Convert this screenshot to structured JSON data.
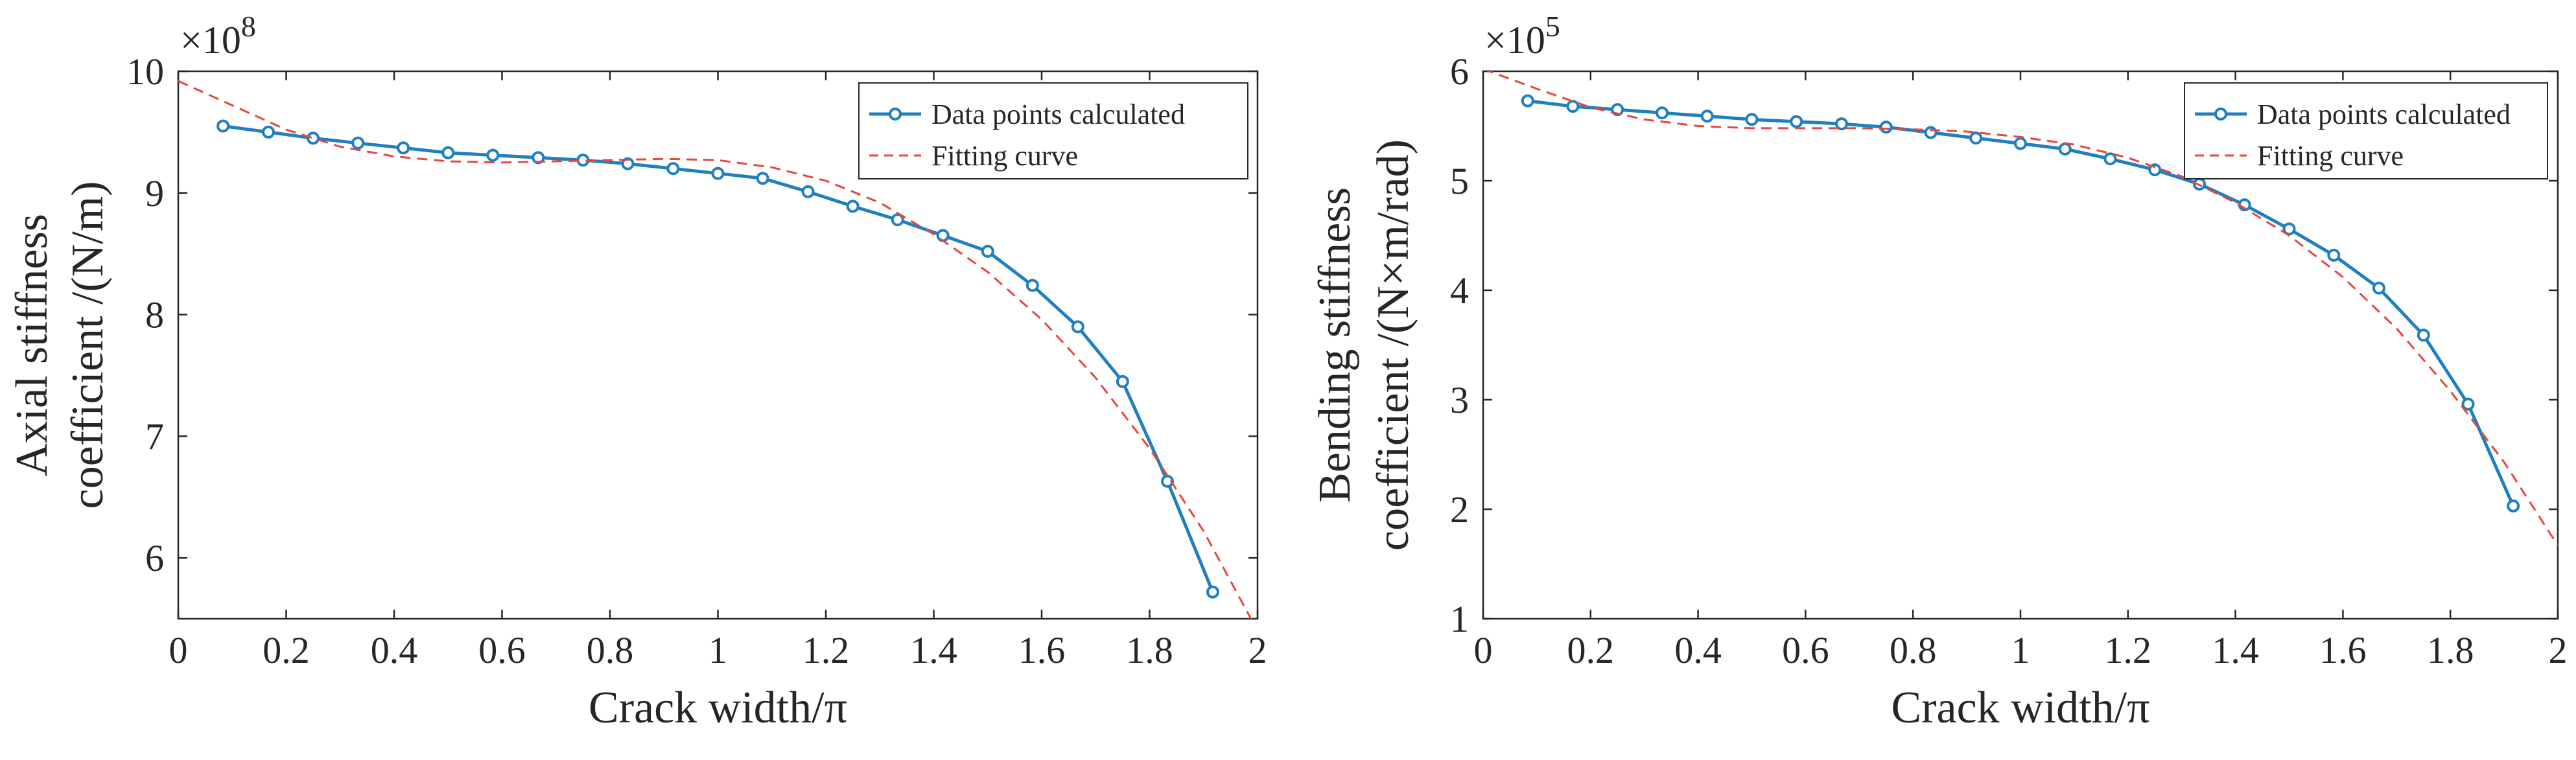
{
  "colors": {
    "data_line": "#1f7fc0",
    "fit_line": "#e8453c",
    "axes": "#262626",
    "background": "#ffffff"
  },
  "chart_data": [
    {
      "type": "line",
      "id": "axial",
      "xlabel": "Crack width/π",
      "ylabel_lines": [
        "Axial stiffness",
        "coefficient /(N/m)"
      ],
      "y_exponent_base": "×10",
      "y_exponent": "8",
      "xlim": [
        0,
        2
      ],
      "ylim": [
        5.5,
        10
      ],
      "xticks": [
        0,
        0.2,
        0.4,
        0.6,
        0.8,
        1,
        1.2,
        1.4,
        1.6,
        1.8,
        2
      ],
      "xtick_labels": [
        "0",
        "0.2",
        "0.4",
        "0.6",
        "0.8",
        "1",
        "1.2",
        "1.4",
        "1.6",
        "1.8",
        "2"
      ],
      "yticks": [
        6,
        7,
        8,
        9,
        10
      ],
      "ytick_labels": [
        "6",
        "7",
        "8",
        "9",
        "10"
      ],
      "legend": {
        "position": "top-right",
        "entries": [
          "Data points calculated",
          "Fitting curve"
        ]
      },
      "series": [
        {
          "name": "Data points calculated",
          "style": "line-marker",
          "x": [
            0.083,
            0.167,
            0.25,
            0.333,
            0.417,
            0.5,
            0.583,
            0.667,
            0.75,
            0.833,
            0.917,
            1.0,
            1.083,
            1.167,
            1.25,
            1.333,
            1.417,
            1.5,
            1.583,
            1.667,
            1.75,
            1.833,
            1.917
          ],
          "y": [
            9.55,
            9.5,
            9.45,
            9.41,
            9.37,
            9.33,
            9.31,
            9.29,
            9.27,
            9.24,
            9.2,
            9.16,
            9.12,
            9.01,
            8.89,
            8.78,
            8.65,
            8.52,
            8.24,
            7.9,
            7.45,
            6.63,
            5.72
          ]
        },
        {
          "name": "Fitting curve",
          "style": "dashed",
          "x": [
            0,
            0.1,
            0.2,
            0.3,
            0.4,
            0.5,
            0.6,
            0.7,
            0.8,
            0.9,
            1.0,
            1.1,
            1.2,
            1.3,
            1.4,
            1.5,
            1.6,
            1.7,
            1.8,
            1.9,
            2.0
          ],
          "y": [
            9.92,
            9.72,
            9.52,
            9.38,
            9.3,
            9.26,
            9.25,
            9.26,
            9.27,
            9.28,
            9.27,
            9.21,
            9.1,
            8.92,
            8.66,
            8.35,
            7.96,
            7.48,
            6.9,
            6.22,
            5.4
          ]
        }
      ]
    },
    {
      "type": "line",
      "id": "bending",
      "xlabel": "Crack width/π",
      "ylabel_lines": [
        "Bending stiffness",
        "coefficient /(N×m/rad)"
      ],
      "y_exponent_base": "×10",
      "y_exponent": "5",
      "xlim": [
        0,
        2
      ],
      "ylim": [
        1,
        6
      ],
      "xticks": [
        0,
        0.2,
        0.4,
        0.6,
        0.8,
        1,
        1.2,
        1.4,
        1.6,
        1.8,
        2
      ],
      "xtick_labels": [
        "0",
        "0.2",
        "0.4",
        "0.6",
        "0.8",
        "1",
        "1.2",
        "1.4",
        "1.6",
        "1.8",
        "2"
      ],
      "yticks": [
        1,
        2,
        3,
        4,
        5,
        6
      ],
      "ytick_labels": [
        "1",
        "2",
        "3",
        "4",
        "5",
        "6"
      ],
      "legend": {
        "position": "top-right",
        "entries": [
          "Data points calculated",
          "Fitting curve"
        ]
      },
      "series": [
        {
          "name": "Data points calculated",
          "style": "line-marker",
          "x": [
            0.083,
            0.167,
            0.25,
            0.333,
            0.417,
            0.5,
            0.583,
            0.667,
            0.75,
            0.833,
            0.917,
            1.0,
            1.083,
            1.167,
            1.25,
            1.333,
            1.417,
            1.5,
            1.583,
            1.667,
            1.75,
            1.833,
            1.917
          ],
          "y": [
            5.73,
            5.68,
            5.65,
            5.62,
            5.59,
            5.56,
            5.54,
            5.52,
            5.49,
            5.44,
            5.39,
            5.34,
            5.29,
            5.2,
            5.1,
            4.97,
            4.78,
            4.56,
            4.32,
            4.02,
            3.59,
            2.96,
            2.03
          ]
        },
        {
          "name": "Fitting curve",
          "style": "dashed",
          "x": [
            0,
            0.1,
            0.2,
            0.3,
            0.4,
            0.5,
            0.6,
            0.7,
            0.8,
            0.9,
            1.0,
            1.1,
            1.2,
            1.3,
            1.4,
            1.5,
            1.6,
            1.7,
            1.8,
            1.9,
            2.0
          ],
          "y": [
            6.02,
            5.84,
            5.67,
            5.56,
            5.5,
            5.48,
            5.48,
            5.48,
            5.47,
            5.45,
            5.4,
            5.33,
            5.21,
            5.04,
            4.8,
            4.5,
            4.12,
            3.65,
            3.08,
            2.43,
            1.67
          ]
        }
      ]
    }
  ]
}
